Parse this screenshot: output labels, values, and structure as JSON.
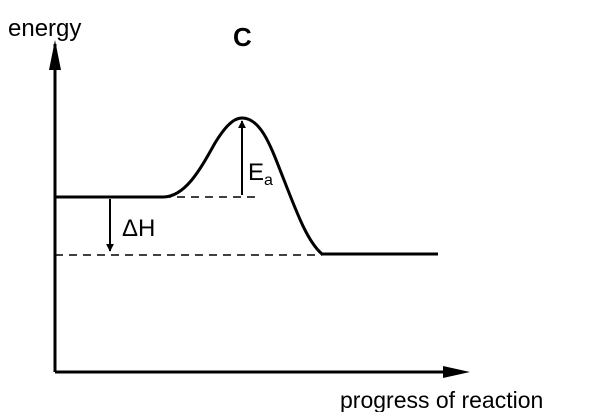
{
  "diagram": {
    "panel_label": "C",
    "y_axis_label": "energy",
    "x_axis_label": "progress of reaction",
    "enthalpy_label": "ΔH",
    "activation_energy_label": "E",
    "activation_energy_subscript": "a"
  }
}
